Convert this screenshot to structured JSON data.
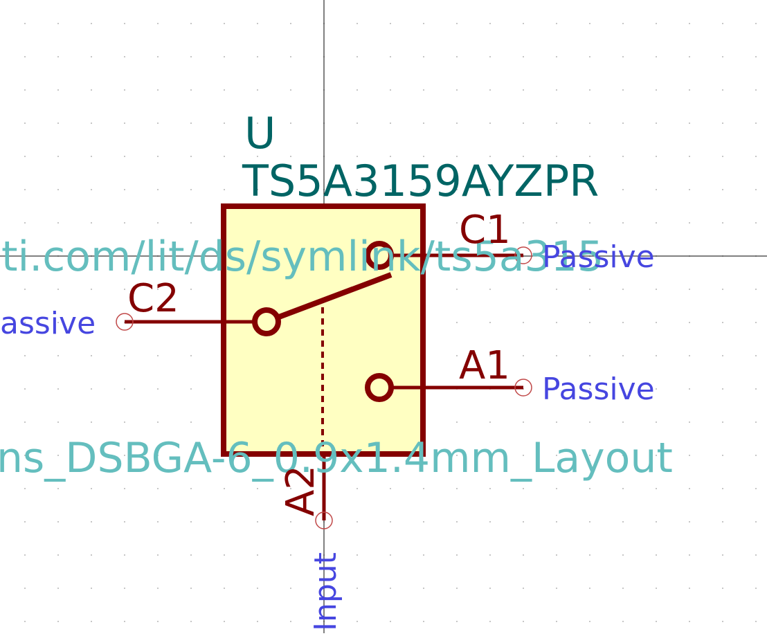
{
  "symbol": {
    "reference": "U",
    "value": "TS5A3159AYZPR",
    "datasheet_fragment": "ti.com/lit/ds/symlink/ts5a315",
    "footprint_fragment": "ns_DSBGA-6_0.9x1.4mm_Layout"
  },
  "pins": [
    {
      "name": "C1",
      "electrical_type": "Passive"
    },
    {
      "name": "C2",
      "electrical_type": "assive"
    },
    {
      "name": "A1",
      "electrical_type": "Passive"
    },
    {
      "name": "A2",
      "electrical_type": "Input"
    }
  ],
  "colors": {
    "background": "#ffffff",
    "body_fill": "#ffffc2",
    "body_stroke": "#840000",
    "pin": "#840000",
    "pin_name": "#840000",
    "pin_type": "#4646e0",
    "field_reference": "#006464",
    "field_hidden": "#64bebe",
    "crosshair": "#000000",
    "grid_dot": "#b4b4b4"
  }
}
